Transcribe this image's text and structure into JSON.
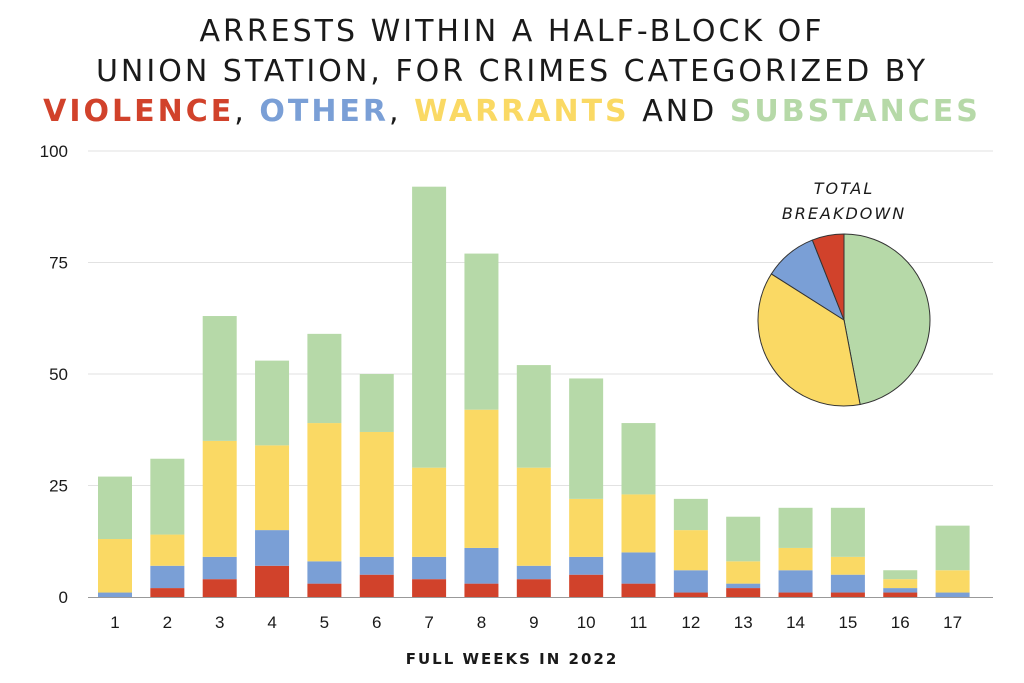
{
  "title": {
    "line1": "ARRESTS WITHIN A HALF-BLOCK OF",
    "line2": "UNION STATION, FOR CRIMES CATEGORIZED BY",
    "kw1": "VIOLENCE",
    "sep1": ", ",
    "kw2": "OTHER",
    "sep2": ", ",
    "kw3": "WARRANTS",
    "sep3": " AND ",
    "kw4": "SUBSTANCES"
  },
  "chart_data": [
    {
      "type": "bar",
      "stacked": true,
      "xlabel": "FULL WEEKS IN 2022",
      "ylabel": "",
      "ylim": [
        0,
        100
      ],
      "yticks": [
        "0",
        "25",
        "50",
        "75",
        "100"
      ],
      "grid": true,
      "categories": [
        "1",
        "2",
        "3",
        "4",
        "5",
        "6",
        "7",
        "8",
        "9",
        "10",
        "11",
        "12",
        "13",
        "14",
        "15",
        "16",
        "17"
      ],
      "series": [
        {
          "name": "VIOLENCE",
          "color": "#d1422b",
          "values": [
            0,
            2,
            4,
            7,
            3,
            5,
            4,
            3,
            4,
            5,
            3,
            1,
            2,
            1,
            1,
            1,
            0
          ]
        },
        {
          "name": "OTHER",
          "color": "#7a9fd6",
          "values": [
            1,
            5,
            5,
            8,
            5,
            4,
            5,
            8,
            3,
            4,
            7,
            5,
            1,
            5,
            4,
            1,
            1
          ]
        },
        {
          "name": "WARRANTS",
          "color": "#fad964",
          "values": [
            12,
            7,
            26,
            19,
            31,
            28,
            20,
            31,
            22,
            13,
            13,
            9,
            5,
            5,
            4,
            2,
            5
          ]
        },
        {
          "name": "SUBSTANCES",
          "color": "#b6d9a8",
          "values": [
            14,
            17,
            28,
            19,
            20,
            13,
            63,
            35,
            23,
            27,
            16,
            7,
            10,
            9,
            11,
            2,
            10
          ]
        }
      ]
    },
    {
      "type": "pie",
      "title": "TOTAL BREAKDOWN",
      "slices": [
        {
          "name": "SUBSTANCES",
          "color": "#b6d9a8",
          "value": 47
        },
        {
          "name": "WARRANTS",
          "color": "#fad964",
          "value": 37
        },
        {
          "name": "OTHER",
          "color": "#7a9fd6",
          "value": 10
        },
        {
          "name": "VIOLENCE",
          "color": "#d1422b",
          "value": 6
        }
      ]
    }
  ]
}
